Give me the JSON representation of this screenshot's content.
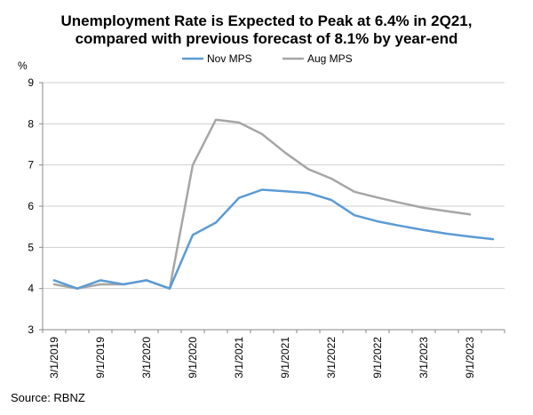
{
  "chart_data": {
    "type": "line",
    "title_line1": "Unemployment Rate is Expected to Peak at 6.4% in 2Q21,",
    "title_line2": "compared with previous forecast of 8.1% by year-end",
    "ylabel": "%",
    "ylim": [
      3,
      9
    ],
    "yticks": [
      "3",
      "4",
      "5",
      "6",
      "7",
      "8",
      "9"
    ],
    "x_count": 20,
    "xticks": [
      {
        "index": 0,
        "label": "3/1/2019"
      },
      {
        "index": 2,
        "label": "9/1/2019"
      },
      {
        "index": 4,
        "label": "3/1/2020"
      },
      {
        "index": 6,
        "label": "9/1/2020"
      },
      {
        "index": 8,
        "label": "3/1/2021"
      },
      {
        "index": 10,
        "label": "9/1/2021"
      },
      {
        "index": 12,
        "label": "3/1/2022"
      },
      {
        "index": 14,
        "label": "9/1/2022"
      },
      {
        "index": 16,
        "label": "3/1/2023"
      },
      {
        "index": 18,
        "label": "9/1/2023"
      }
    ],
    "series": [
      {
        "name": "Nov MPS",
        "color": "#5b9bd5",
        "values": [
          4.2,
          4.0,
          4.2,
          4.1,
          4.2,
          4.0,
          5.3,
          5.6,
          6.2,
          6.4,
          6.36,
          6.32,
          6.15,
          5.78,
          5.63,
          5.52,
          5.42,
          5.33,
          5.26,
          5.2
        ]
      },
      {
        "name": "Aug MPS",
        "color": "#a6a6a6",
        "values": [
          4.1,
          4.0,
          4.1,
          4.1,
          4.2,
          4.0,
          7.0,
          8.1,
          8.03,
          7.75,
          7.3,
          6.9,
          6.67,
          6.35,
          6.21,
          6.08,
          5.96,
          5.88,
          5.8,
          null
        ]
      }
    ]
  },
  "source": "Source: RBNZ"
}
